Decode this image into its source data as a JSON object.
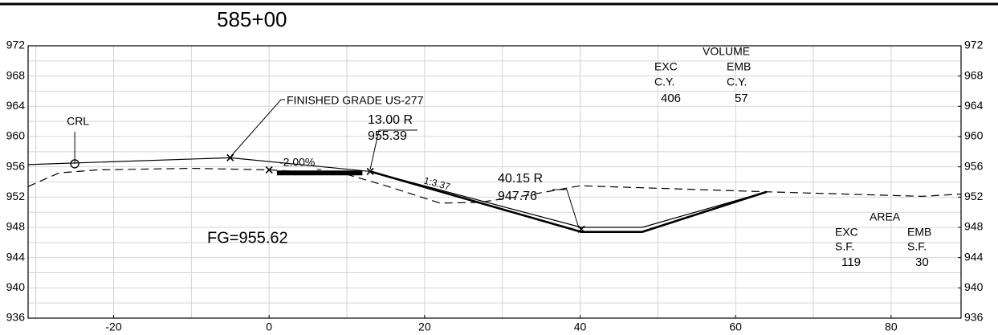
{
  "chart_data": {
    "type": "line",
    "title": "585+00",
    "xlim": [
      -31,
      89
    ],
    "ylim": [
      936,
      972
    ],
    "xticks": [
      -20,
      0,
      20,
      40,
      60,
      80
    ],
    "yticks": [
      936,
      940,
      944,
      948,
      952,
      956,
      960,
      964,
      968,
      972
    ],
    "xgrid": [
      -30,
      -20,
      -10,
      0,
      10,
      20,
      30,
      40,
      50,
      60,
      70,
      80
    ],
    "ygrid": [
      938,
      940,
      942,
      944,
      946,
      948,
      950,
      952,
      954,
      956,
      958,
      960,
      962,
      964,
      966,
      968,
      970
    ],
    "grid": true,
    "series": [
      {
        "style": "dashed",
        "color": "#000000",
        "x": [
          -31,
          -27,
          -22,
          -10,
          0,
          10,
          15,
          22,
          27,
          33,
          40,
          64,
          84,
          89
        ],
        "values": [
          953.4,
          955.2,
          955.6,
          955.8,
          955.6,
          955.0,
          953.5,
          951.2,
          951.3,
          952.2,
          953.5,
          952.7,
          952.1,
          952.4
        ]
      },
      {
        "style": "thin",
        "color": "#000000",
        "x": [
          -31,
          -5,
          13,
          40.15,
          48,
          64
        ],
        "values": [
          956.3,
          957.2,
          955.39,
          948.0,
          948.0,
          952.7
        ]
      },
      {
        "style": "thick",
        "color": "#000000",
        "x": [
          13,
          40.15,
          48,
          64
        ],
        "values": [
          955.39,
          947.4,
          947.4,
          952.7
        ]
      },
      {
        "style": "slab",
        "color": "#000000",
        "x": [
          1,
          12
        ],
        "values": [
          955.2,
          955.2
        ]
      }
    ],
    "markers": {
      "x": [
        -5,
        0,
        13,
        40.15
      ],
      "values": [
        957.2,
        955.6,
        955.39,
        947.76
      ]
    },
    "crl": {
      "label": "CRL",
      "x": -25,
      "value": 956.4
    },
    "annotations": {
      "finished_grade": "FINISHED GRADE US-277",
      "slope": "-2.00%",
      "point1_offset": "13.00 R",
      "point1_elev": "955.39",
      "side_slope": "1:3.37",
      "point2_offset": "40.15 R",
      "point2_elev": "947.76",
      "fg": "FG=955.62"
    },
    "volume": {
      "title": "VOLUME",
      "headers": [
        "EXC",
        "EMB"
      ],
      "units": [
        "C.Y.",
        "C.Y."
      ],
      "values": [
        "406",
        "57"
      ]
    },
    "area": {
      "title": "AREA",
      "headers": [
        "EXC",
        "EMB"
      ],
      "units": [
        "S.F.",
        "S.F."
      ],
      "values": [
        "119",
        "30"
      ]
    }
  }
}
